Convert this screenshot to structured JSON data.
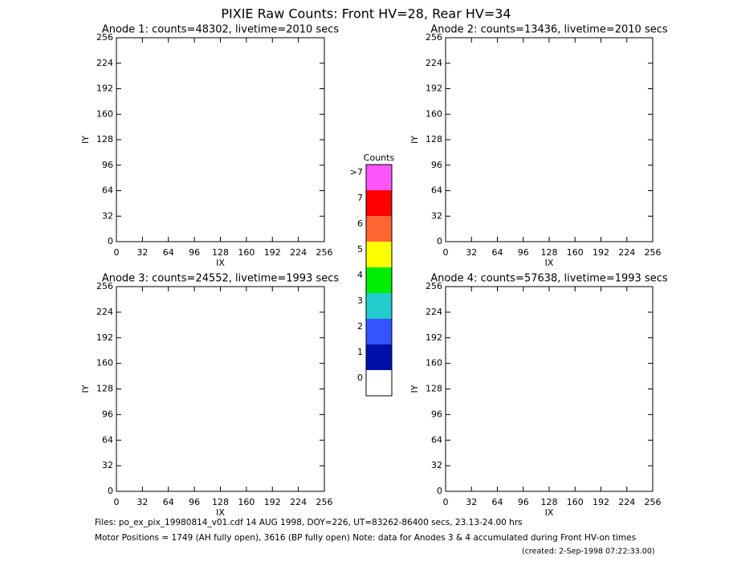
{
  "title": "PIXIE Raw Counts:  Front HV=28, Rear HV=34",
  "chart_data": [
    {
      "type": "heatmap",
      "title": "Anode 1: counts=48302, livetime=2010 secs",
      "xlabel": "IX",
      "ylabel": "IY",
      "xlim": [
        0,
        256
      ],
      "ylim": [
        0,
        256
      ],
      "xticks": [
        0,
        32,
        64,
        96,
        128,
        160,
        192,
        224,
        256
      ],
      "yticks": [
        0,
        32,
        64,
        96,
        128,
        160,
        192,
        224,
        256
      ]
    },
    {
      "type": "heatmap",
      "title": "Anode 2: counts=13436, livetime=2010 secs",
      "xlabel": "IX",
      "ylabel": "IY",
      "xlim": [
        0,
        256
      ],
      "ylim": [
        0,
        256
      ],
      "xticks": [
        0,
        32,
        64,
        96,
        128,
        160,
        192,
        224,
        256
      ],
      "yticks": [
        0,
        32,
        64,
        96,
        128,
        160,
        192,
        224,
        256
      ]
    },
    {
      "type": "heatmap",
      "title": "Anode 3: counts=24552, livetime=1993 secs",
      "xlabel": "IX",
      "ylabel": "IY",
      "xlim": [
        0,
        256
      ],
      "ylim": [
        0,
        256
      ],
      "xticks": [
        0,
        32,
        64,
        96,
        128,
        160,
        192,
        224,
        256
      ],
      "yticks": [
        0,
        32,
        64,
        96,
        128,
        160,
        192,
        224,
        256
      ]
    },
    {
      "type": "heatmap",
      "title": "Anode 4: counts=57638, livetime=1993 secs",
      "xlabel": "IX",
      "ylabel": "IY",
      "xlim": [
        0,
        256
      ],
      "ylim": [
        0,
        256
      ],
      "xticks": [
        0,
        32,
        64,
        96,
        128,
        160,
        192,
        224,
        256
      ],
      "yticks": [
        0,
        32,
        64,
        96,
        128,
        160,
        192,
        224,
        256
      ]
    }
  ],
  "colorbar": {
    "title": "Counts",
    "labels": [
      ">7",
      "7",
      "6",
      "5",
      "4",
      "3",
      "2",
      "1",
      "0"
    ],
    "colors": [
      "#ff55ff",
      "#ff0000",
      "#ff6633",
      "#ffff00",
      "#00ee00",
      "#22cccc",
      "#3355ff",
      "#0011aa",
      "#ffffff"
    ]
  },
  "footer": {
    "files": "Files: po_ex_pix_19980814_v01.cdf     14 AUG 1998, DOY=226, UT=83262-86400 secs, 23.13-24.00 hrs",
    "motor": "Motor Positions = 1749 (AH fully open), 3616 (BP fully open)    Note: data for Anodes 3 & 4 accumulated during Front HV-on times",
    "created": "(created:  2-Sep-1998 07:22:33.00)"
  }
}
